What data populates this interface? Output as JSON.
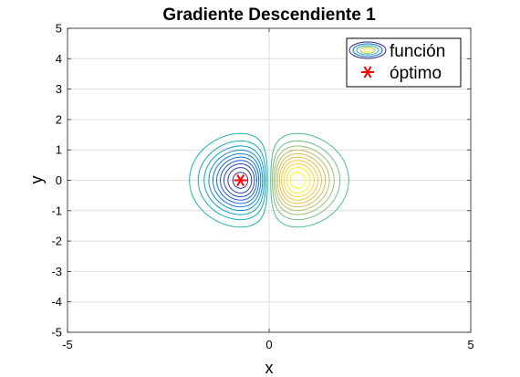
{
  "chart_data": {
    "type": "contour",
    "title": "Gradiente Descendiente 1",
    "xlabel": "x",
    "ylabel": "y",
    "xlim": [
      -5,
      5
    ],
    "ylim": [
      -5,
      5
    ],
    "xticks": [
      "-5",
      "0",
      "5"
    ],
    "yticks": [
      "-5",
      "-4",
      "-3",
      "-2",
      "-1",
      "0",
      "1",
      "2",
      "3",
      "4",
      "5"
    ],
    "grid": true,
    "colormap": "parula",
    "function_contours": {
      "name": "función",
      "minimum": {
        "x": -0.71,
        "y": 0.0
      },
      "maximum": {
        "x": 0.71,
        "y": 0.0
      },
      "levels": [
        -0.4,
        -0.36,
        -0.32,
        -0.28,
        -0.24,
        -0.2,
        -0.16,
        -0.12,
        -0.08,
        -0.04,
        0.04,
        0.08,
        0.12,
        0.16,
        0.2,
        0.24,
        0.28,
        0.32,
        0.36,
        0.4
      ]
    },
    "optimum": {
      "name": "óptimo",
      "x": -0.71,
      "y": 0.0,
      "marker": "asterisk",
      "color": "#ff0000"
    },
    "legend": {
      "location": "top-right",
      "entries": [
        "función",
        "óptimo"
      ]
    }
  }
}
